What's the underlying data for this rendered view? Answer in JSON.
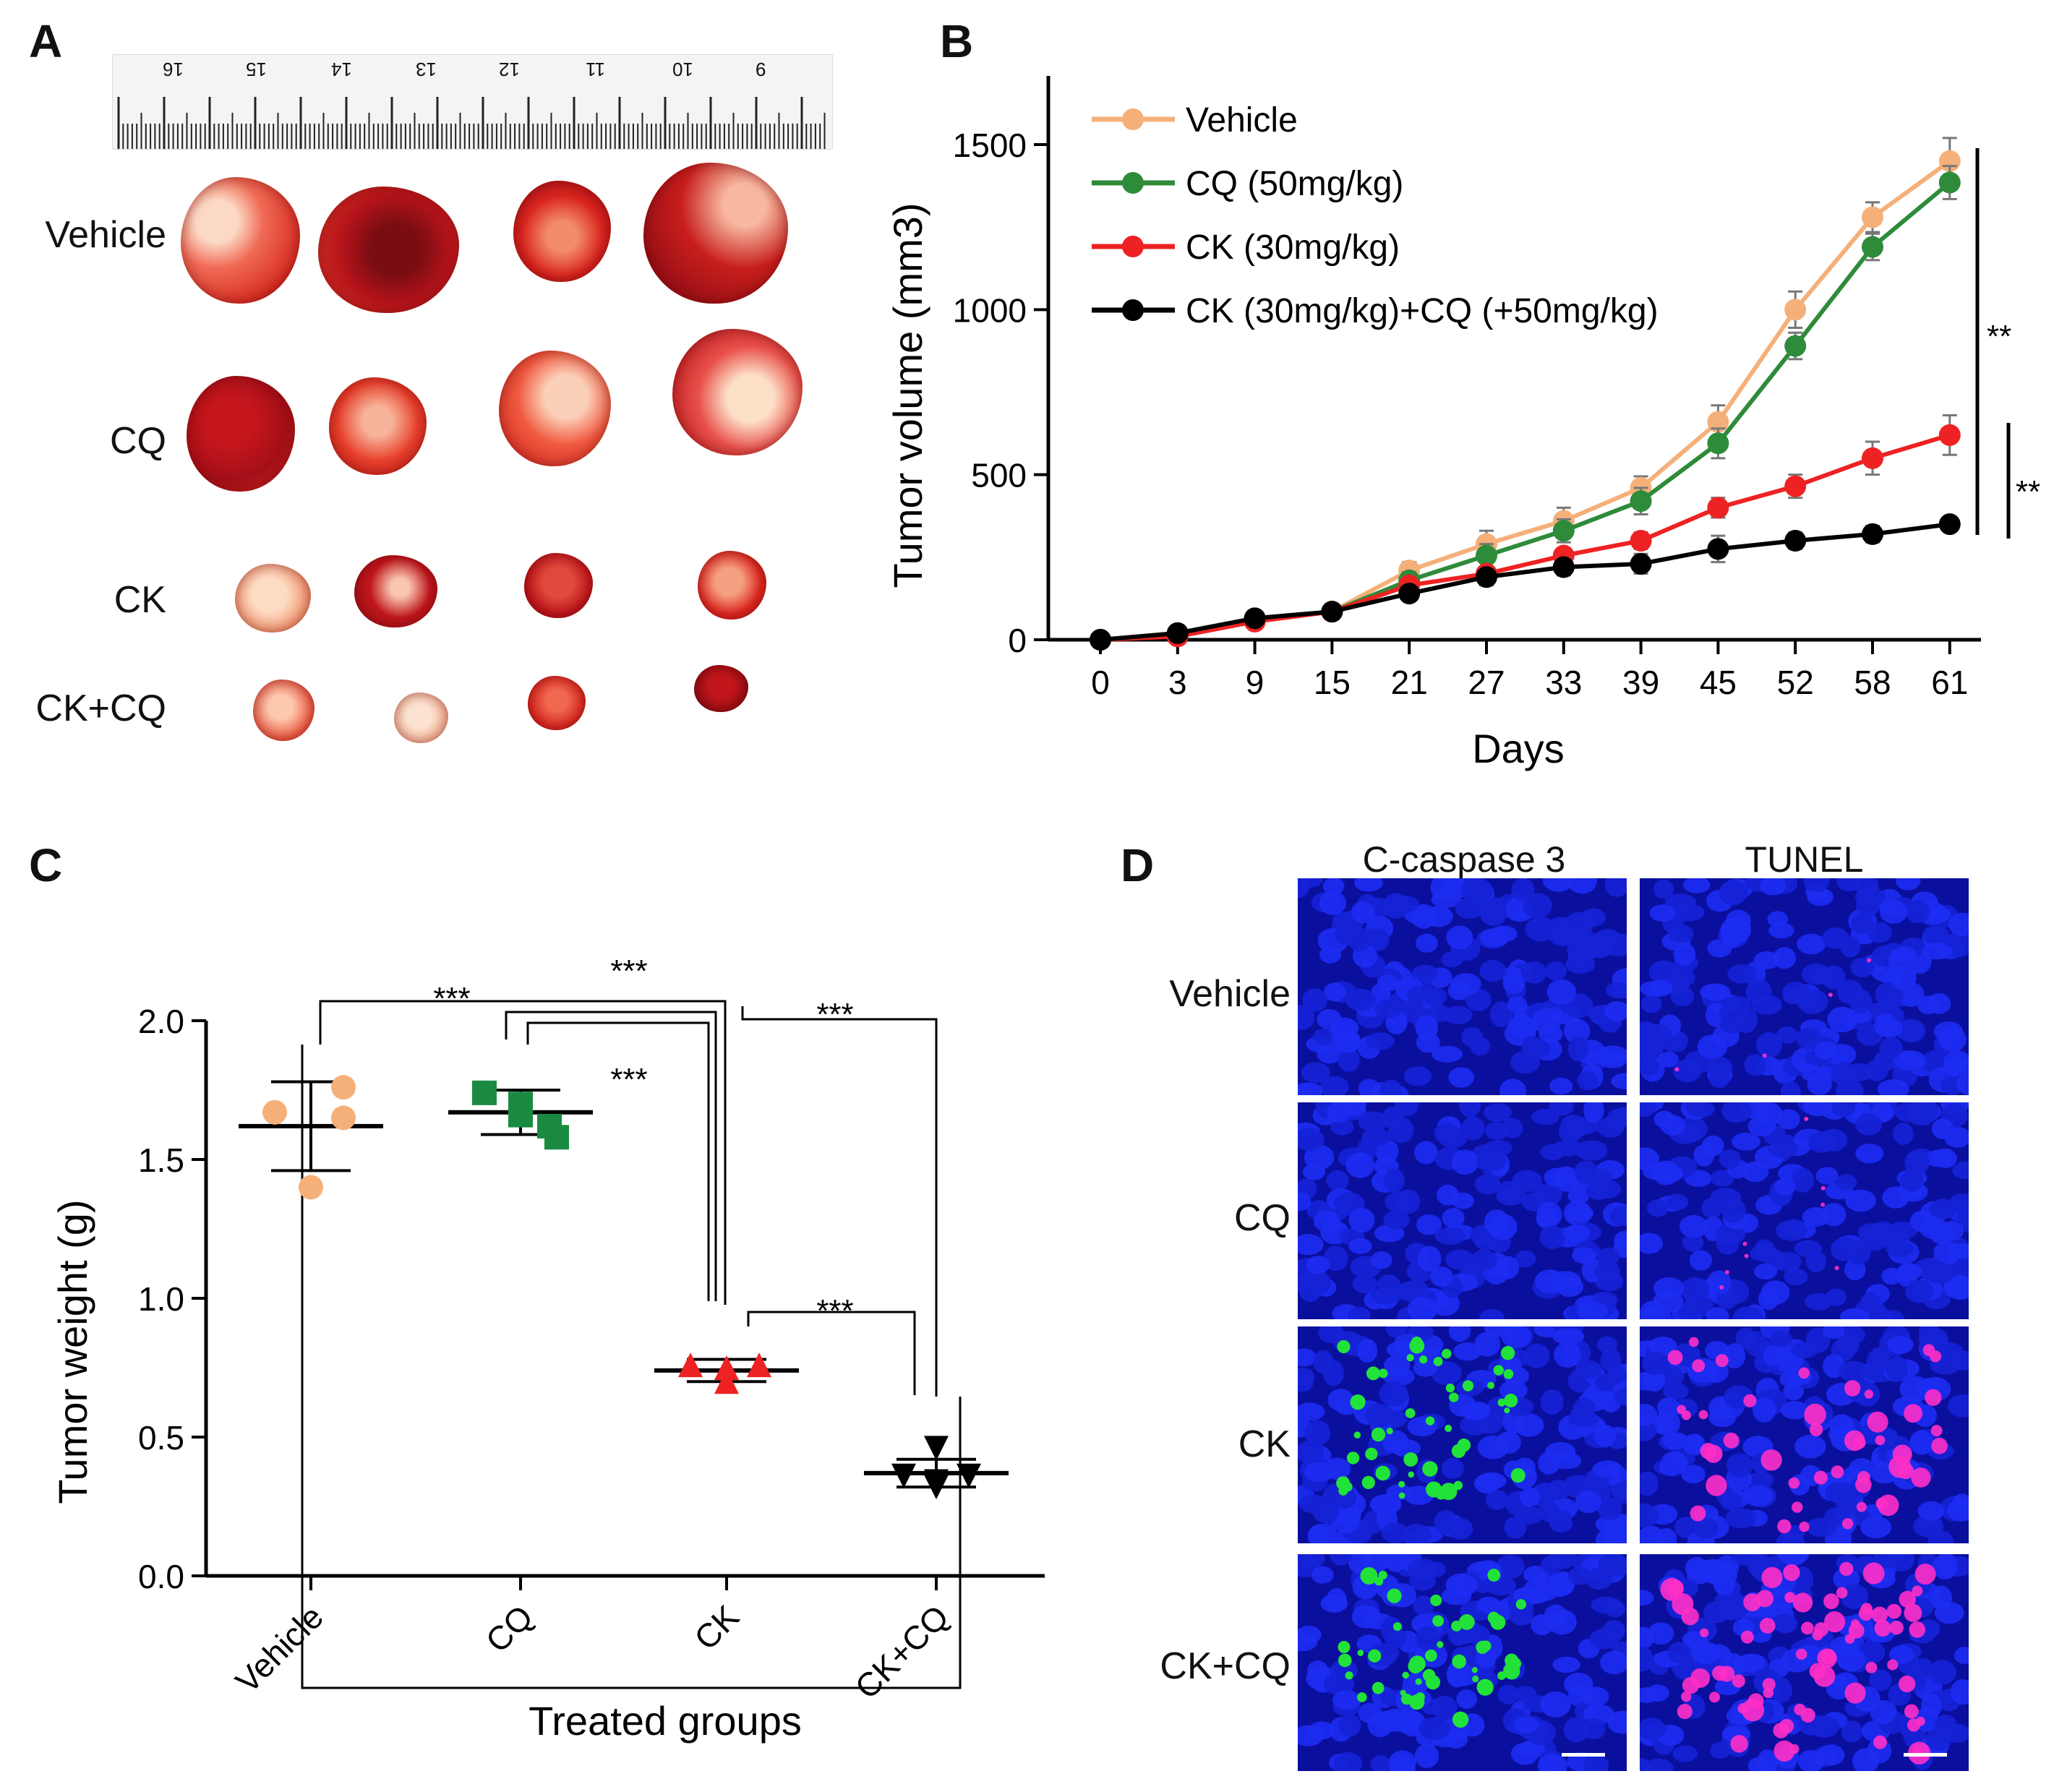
{
  "panels": {
    "a": "A",
    "b": "B",
    "c": "C",
    "d": "D"
  },
  "panel_a": {
    "ruler_numbers": [
      "16",
      "15",
      "14",
      "13",
      "12",
      "11",
      "10",
      "9"
    ],
    "rows": [
      "Vehicle",
      "CQ",
      "CK",
      "CK+CQ"
    ]
  },
  "colors": {
    "vehicle": "#f5b07a",
    "cq": "#2e8b3a",
    "ck": "#ee2222",
    "ckcq": "#000000",
    "cq_marker": "#1a8a40",
    "ck_marker": "#ee2222"
  },
  "chart_data": [
    {
      "type": "line",
      "xlabel": "Days",
      "ylabel": "Tumor volume (mm3)",
      "categories": [
        "0",
        "3",
        "9",
        "15",
        "21",
        "27",
        "33",
        "39",
        "45",
        "52",
        "58",
        "61"
      ],
      "ylim": [
        0,
        1650
      ],
      "yticks": [
        "0",
        "500",
        "1000",
        "1500"
      ],
      "series": [
        {
          "name": "Vehicle",
          "values": [
            0,
            20,
            65,
            85,
            210,
            290,
            360,
            460,
            660,
            1000,
            1280,
            1450
          ],
          "errors": [
            0,
            8,
            10,
            12,
            25,
            40,
            40,
            35,
            50,
            55,
            45,
            70
          ]
        },
        {
          "name": "CQ (50mg/kg)",
          "values": [
            0,
            20,
            65,
            85,
            180,
            255,
            330,
            420,
            595,
            890,
            1190,
            1385
          ],
          "errors": [
            0,
            8,
            10,
            12,
            25,
            35,
            35,
            40,
            45,
            40,
            40,
            50
          ]
        },
        {
          "name": "CK (30mg/kg)",
          "values": [
            0,
            10,
            55,
            85,
            165,
            200,
            255,
            300,
            400,
            465,
            550,
            620
          ],
          "errors": [
            0,
            8,
            10,
            12,
            15,
            20,
            20,
            25,
            30,
            35,
            50,
            60
          ]
        },
        {
          "name": "CK (30mg/kg)+CQ (+50mg/kg)",
          "values": [
            0,
            20,
            65,
            85,
            140,
            190,
            220,
            230,
            275,
            300,
            320,
            350
          ],
          "errors": [
            0,
            8,
            10,
            10,
            20,
            25,
            25,
            30,
            40,
            25,
            25,
            20
          ]
        }
      ],
      "significance": [
        "**",
        "**"
      ]
    },
    {
      "type": "scatter",
      "xlabel": "Treated groups",
      "ylabel": "Tumor weight (g)",
      "categories": [
        "Vehicle",
        "CQ",
        "CK",
        "CK+CQ"
      ],
      "ylim": [
        0,
        2.0
      ],
      "yticks": [
        "0.0",
        "0.5",
        "1.0",
        "1.5",
        "2.0"
      ],
      "groups": [
        {
          "name": "Vehicle",
          "points": [
            1.67,
            1.65,
            1.76,
            1.4
          ],
          "mean": 1.62,
          "sd": 0.16
        },
        {
          "name": "CQ",
          "points": [
            1.74,
            1.7,
            1.66,
            1.58,
            1.62
          ],
          "mean": 1.67,
          "sd": 0.08
        },
        {
          "name": "CK",
          "points": [
            0.76,
            0.76,
            0.75,
            0.7
          ],
          "mean": 0.74,
          "sd": 0.04
        },
        {
          "name": "CK+CQ",
          "points": [
            0.46,
            0.36,
            0.36,
            0.34,
            0.32
          ],
          "mean": 0.37,
          "sd": 0.05
        }
      ],
      "comparisons": [
        {
          "from": "Vehicle",
          "to": "CK+CQ",
          "label": "***"
        },
        {
          "from": "Vehicle",
          "to": "CK",
          "label": "***"
        },
        {
          "from": "CQ",
          "to": "CK",
          "label": "***"
        },
        {
          "from": "CQ",
          "to": "CK+CQ",
          "label": "***"
        },
        {
          "from": "CK",
          "to": "CK+CQ",
          "label": "***"
        }
      ]
    }
  ],
  "panel_d": {
    "columns": [
      "C-caspase 3",
      "TUNEL"
    ],
    "rows": [
      "Vehicle",
      "CQ",
      "CK",
      "CK+CQ"
    ]
  }
}
